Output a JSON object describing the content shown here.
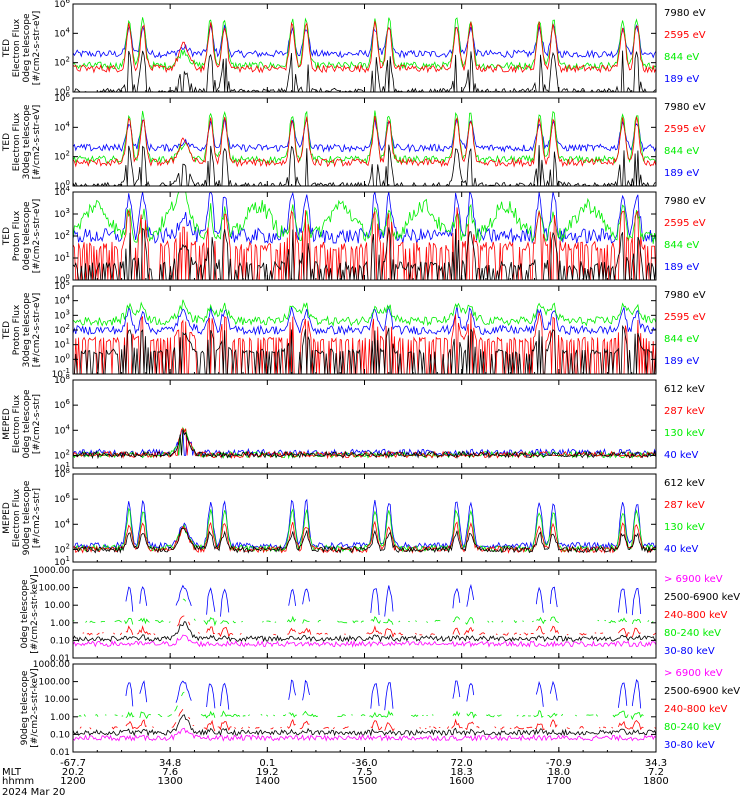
{
  "colors": {
    "black": "#000000",
    "red": "#ff0000",
    "green": "#00ee00",
    "blue": "#0000ff",
    "magenta": "#ff00ff"
  },
  "x_axis": {
    "rows": [
      {
        "label": "",
        "values": [
          "-67.7",
          "34.8",
          "0.1",
          "-36.0",
          "72.0",
          "-70.9",
          "34.3"
        ]
      },
      {
        "label": "MLT",
        "values": [
          "20.2",
          "7.6",
          "19.2",
          "7.5",
          "18.3",
          "18.0",
          "7.2"
        ]
      },
      {
        "label": "hhmm",
        "values": [
          "1200",
          "1300",
          "1400",
          "1500",
          "1600",
          "1700",
          "1800"
        ]
      }
    ],
    "date": "2024 Mar 20"
  },
  "chart_data": [
    {
      "type": "line",
      "ylabel": [
        "TED",
        "Electron Flux",
        "0deg telescope",
        "[#/cm2-s-str-eV]"
      ],
      "scale": "log",
      "ylim": [
        1,
        1000000
      ],
      "yticks": [
        "10^0",
        "10^2",
        "10^4",
        "10^6"
      ],
      "legend": [
        {
          "name": "7980 eV",
          "color": "#000000"
        },
        {
          "name": "2595 eV",
          "color": "#ff0000"
        },
        {
          "name": "844 eV",
          "color": "#00ee00"
        },
        {
          "name": "189 eV",
          "color": "#0000ff"
        }
      ]
    },
    {
      "type": "line",
      "ylabel": [
        "TED",
        "Electron Flux",
        "30deg telescope",
        "[#/cm2-s-str-eV]"
      ],
      "scale": "log",
      "ylim": [
        1,
        1000000
      ],
      "yticks": [
        "10^0",
        "10^2",
        "10^4",
        "10^6"
      ],
      "legend": [
        {
          "name": "7980 eV",
          "color": "#000000"
        },
        {
          "name": "2595 eV",
          "color": "#ff0000"
        },
        {
          "name": "844 eV",
          "color": "#00ee00"
        },
        {
          "name": "189 eV",
          "color": "#0000ff"
        }
      ]
    },
    {
      "type": "line",
      "ylabel": [
        "TED",
        "Proton Flux",
        "0deg telescope",
        "[#/cm2-s-str-eV]"
      ],
      "scale": "log",
      "ylim": [
        1,
        10000
      ],
      "yticks": [
        "10^0",
        "10^1",
        "10^2",
        "10^3",
        "10^4"
      ],
      "legend": [
        {
          "name": "7980 eV",
          "color": "#000000"
        },
        {
          "name": "2595 eV",
          "color": "#ff0000"
        },
        {
          "name": "844 eV",
          "color": "#00ee00"
        },
        {
          "name": "189 eV",
          "color": "#0000ff"
        }
      ]
    },
    {
      "type": "line",
      "ylabel": [
        "TED",
        "Proton Flux",
        "30deg telescope",
        "[#/cm2-s-str-eV]"
      ],
      "scale": "log",
      "ylim": [
        0.1,
        100000
      ],
      "yticks": [
        "10^-1",
        "10^0",
        "10^1",
        "10^2",
        "10^3",
        "10^4",
        "10^5"
      ],
      "legend": [
        {
          "name": "7980 eV",
          "color": "#000000"
        },
        {
          "name": "2595 eV",
          "color": "#ff0000"
        },
        {
          "name": "844 eV",
          "color": "#00ee00"
        },
        {
          "name": "189 eV",
          "color": "#0000ff"
        }
      ]
    },
    {
      "type": "line",
      "ylabel": [
        "MEPED",
        "Electron Flux",
        "0deg telescope",
        "[#/cm2-s-str]"
      ],
      "scale": "log",
      "ylim": [
        10,
        100000000
      ],
      "yticks": [
        "10^1",
        "10^2",
        "10^4",
        "10^6",
        "10^8"
      ],
      "legend": [
        {
          "name": "612 keV",
          "color": "#000000"
        },
        {
          "name": "287 keV",
          "color": "#ff0000"
        },
        {
          "name": "130 keV",
          "color": "#00ee00"
        },
        {
          "name": "40 keV",
          "color": "#0000ff"
        }
      ]
    },
    {
      "type": "line",
      "ylabel": [
        "MEPED",
        "Electron Flux",
        "90deg telescope",
        "[#/cm2-s-str]"
      ],
      "scale": "log",
      "ylim": [
        10,
        100000000
      ],
      "yticks": [
        "10^1",
        "10^2",
        "10^4",
        "10^6",
        "10^8"
      ],
      "legend": [
        {
          "name": "612 keV",
          "color": "#000000"
        },
        {
          "name": "287 keV",
          "color": "#ff0000"
        },
        {
          "name": "130 keV",
          "color": "#00ee00"
        },
        {
          "name": "40 keV",
          "color": "#0000ff"
        }
      ]
    },
    {
      "type": "line",
      "ylabel": [
        "0deg telescope",
        "[#/cm2-s-str-keV]"
      ],
      "scale": "log",
      "ylim": [
        0.01,
        1000
      ],
      "yticks": [
        "0.01",
        "0.10",
        "1.00",
        "10.00",
        "100.00",
        "1000.00"
      ],
      "legend": [
        {
          "name": "> 6900 keV",
          "color": "#ff00ff"
        },
        {
          "name": "2500-6900 keV",
          "color": "#000000"
        },
        {
          "name": "240-800 keV",
          "color": "#ff0000"
        },
        {
          "name": "80-240 keV",
          "color": "#00ee00"
        },
        {
          "name": "30-80 keV",
          "color": "#0000ff"
        }
      ]
    },
    {
      "type": "line",
      "ylabel": [
        "90deg telescope",
        "[#/cm2-s-str-keV]"
      ],
      "scale": "log",
      "ylim": [
        0.01,
        1000
      ],
      "yticks": [
        "0.01",
        "0.10",
        "1.00",
        "10.00",
        "100.00",
        "1000.00"
      ],
      "legend": [
        {
          "name": "> 6900 keV",
          "color": "#ff00ff"
        },
        {
          "name": "2500-6900 keV",
          "color": "#000000"
        },
        {
          "name": "240-800 keV",
          "color": "#ff0000"
        },
        {
          "name": "80-240 keV",
          "color": "#00ee00"
        },
        {
          "name": "30-80 keV",
          "color": "#0000ff"
        }
      ]
    }
  ]
}
